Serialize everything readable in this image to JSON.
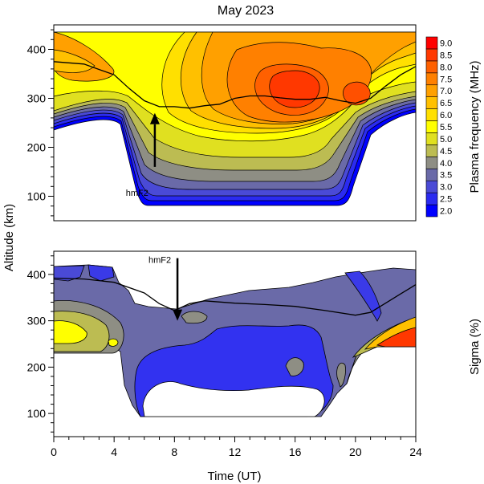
{
  "chart_data": [
    {
      "type": "heatmap",
      "title": "May 2023",
      "xlabel": "Time (UT)",
      "ylabel": "Altitude (km)",
      "xlim": [
        0,
        24
      ],
      "ylim": [
        50,
        450
      ],
      "x_ticks": [
        "0",
        "4",
        "8",
        "12",
        "16",
        "20",
        "24"
      ],
      "y_ticks": [
        "100",
        "200",
        "300",
        "400"
      ],
      "colorbar": {
        "label": "Plasma frequency (MHz)",
        "levels": [
          2.0,
          2.5,
          3.0,
          3.5,
          4.0,
          4.5,
          5.0,
          5.5,
          6.0,
          6.5,
          7.0,
          7.5,
          8.0,
          8.5,
          9.0
        ],
        "tick_labels": [
          "2.0",
          "2.5",
          "3.0",
          "3.5",
          "4.0",
          "4.5",
          "5.0",
          "5.5",
          "6.0",
          "6.5",
          "7.0",
          "7.5",
          "8.0",
          "8.5",
          "9.0"
        ],
        "colors": [
          "#0000ff",
          "#2b2bf0",
          "#4a4ad6",
          "#6a6aa8",
          "#8e8e84",
          "#bcbc52",
          "#e0e020",
          "#ffff00",
          "#ffe000",
          "#ffc000",
          "#ffa000",
          "#ff8000",
          "#ff6000",
          "#ff3800",
          "#ff0000"
        ]
      },
      "annotation": {
        "text": "hmF2",
        "x": 6.7,
        "y": 175,
        "arrow_from_y": 160,
        "arrow_to_y": 270
      },
      "hmF2_curve": [
        [
          0,
          375
        ],
        [
          2,
          370
        ],
        [
          4,
          348
        ],
        [
          5,
          320
        ],
        [
          6,
          295
        ],
        [
          7,
          283
        ],
        [
          8,
          283
        ],
        [
          9,
          280
        ],
        [
          10,
          285
        ],
        [
          11,
          288
        ],
        [
          12,
          300
        ],
        [
          13,
          305
        ],
        [
          14,
          305
        ],
        [
          15,
          301
        ],
        [
          16,
          298
        ],
        [
          17,
          298
        ],
        [
          18,
          302
        ],
        [
          19,
          295
        ],
        [
          20,
          290
        ],
        [
          21,
          300
        ],
        [
          22,
          325
        ],
        [
          23,
          348
        ],
        [
          24,
          365
        ]
      ]
    },
    {
      "type": "heatmap",
      "xlabel": "Time (UT)",
      "ylabel": "Altitude (km)",
      "xlim": [
        0,
        24
      ],
      "ylim": [
        50,
        450
      ],
      "x_ticks": [
        "0",
        "4",
        "8",
        "12",
        "16",
        "20",
        "24"
      ],
      "y_ticks": [
        "100",
        "200",
        "300",
        "400"
      ],
      "colorbar_label": "Sigma (%)",
      "annotation": {
        "text": "hmF2",
        "x": 8.2,
        "y": 430,
        "arrow_from_y": 435,
        "arrow_to_y": 300
      },
      "hmF2_curve": [
        [
          0,
          392
        ],
        [
          2,
          390
        ],
        [
          4,
          383
        ],
        [
          6,
          360
        ],
        [
          7,
          337
        ],
        [
          8,
          322
        ],
        [
          9,
          337
        ],
        [
          10,
          343
        ],
        [
          12,
          338
        ],
        [
          14,
          335
        ],
        [
          16,
          331
        ],
        [
          18,
          322
        ],
        [
          20,
          312
        ],
        [
          21,
          318
        ],
        [
          22,
          338
        ],
        [
          23,
          358
        ],
        [
          24,
          378
        ]
      ]
    }
  ]
}
